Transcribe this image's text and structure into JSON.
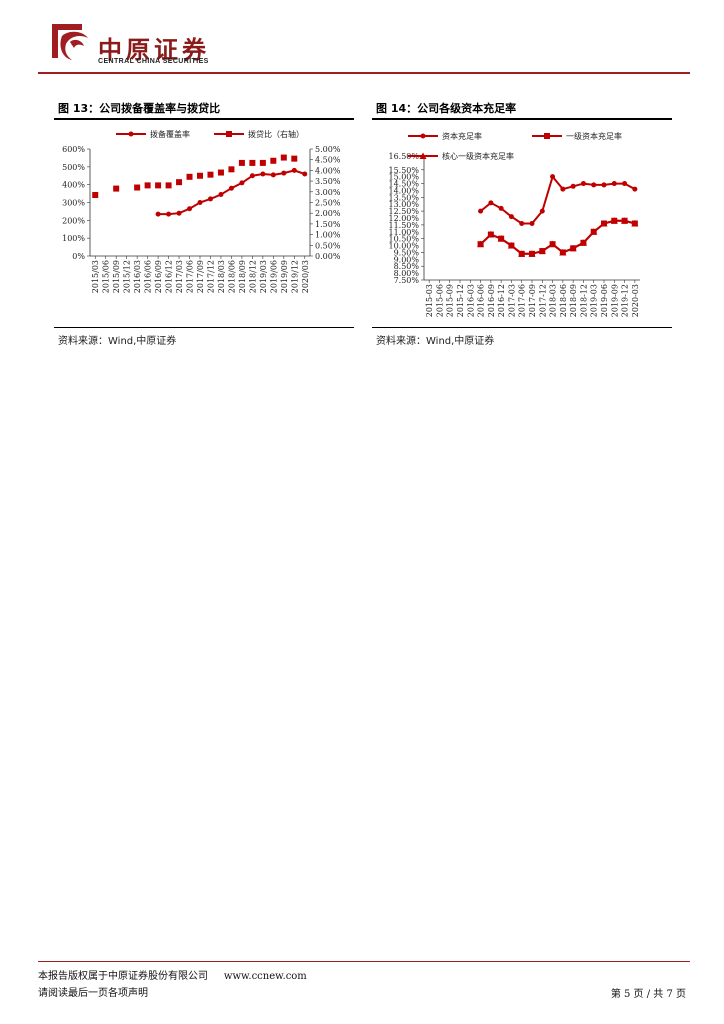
{
  "header": {
    "logo_cn": "中原证券",
    "logo_en": "CENTRAL CHINA SECURITIES",
    "brand_color": "#a01d22"
  },
  "figures": [
    {
      "title": "图 13：公司拨备覆盖率与拨贷比",
      "source": "资料来源：Wind,中原证券",
      "chart_data": {
        "type": "line",
        "x": [
          "2015/03",
          "2015/06",
          "2015/09",
          "2015/12",
          "2016/03",
          "2016/06",
          "2016/09",
          "2016/12",
          "2017/03",
          "2017/06",
          "2017/09",
          "2017/12",
          "2018/03",
          "2018/06",
          "2018/09",
          "2018/12",
          "2019/03",
          "2019/06",
          "2019/09",
          "2019/12",
          "2020/03"
        ],
        "y_left_ticks": [
          "600%",
          "500%",
          "400%",
          "300%",
          "200%",
          "100%",
          "0%"
        ],
        "y_right_ticks": [
          "5.00%",
          "4.50%",
          "4.00%",
          "3.50%",
          "3.00%",
          "2.50%",
          "2.00%",
          "1.50%",
          "1.00%",
          "0.50%",
          "0.00%"
        ],
        "ylim_left": [
          0,
          600
        ],
        "ylim_right": [
          0,
          5
        ],
        "grid": false,
        "legend_position": "top",
        "series": [
          {
            "name": "拨备覆盖率",
            "axis": "left",
            "marker": "circle",
            "color": "#c00000",
            "values": [
              null,
              null,
              null,
              null,
              null,
              null,
              235,
              235,
              240,
              265,
              300,
              320,
              345,
              380,
              410,
              450,
              460,
              455,
              465,
              480,
              460
            ]
          },
          {
            "name": "拨贷比（右轴）",
            "axis": "right",
            "marker": "square",
            "color": "#c00000",
            "values": [
              2.85,
              null,
              3.15,
              null,
              3.2,
              3.3,
              3.3,
              3.3,
              3.45,
              3.7,
              3.75,
              3.8,
              3.9,
              4.05,
              4.35,
              4.35,
              4.35,
              4.45,
              4.6,
              4.55,
              null
            ]
          }
        ]
      }
    },
    {
      "title": "图 14：公司各级资本充足率",
      "source": "资料来源：Wind,中原证券",
      "chart_data": {
        "type": "line",
        "x": [
          "2015-03",
          "2015-06",
          "2015-09",
          "2015-12",
          "2016-03",
          "2016-06",
          "2016-09",
          "2016-12",
          "2017-03",
          "2017-06",
          "2017-09",
          "2017-12",
          "2018-03",
          "2018-06",
          "2018-09",
          "2018-12",
          "2019-03",
          "2019-06",
          "2019-09",
          "2019-12",
          "2020-03"
        ],
        "y_ticks": [
          "16.50%",
          "15.50%",
          "14.50%",
          "13.50%",
          "12.50%",
          "11.50%",
          "10.50%",
          "9.50%",
          "8.50%",
          "7.50%"
        ],
        "y_ticks_alt": [
          "15.00%",
          "14.00%",
          "13.00%",
          "12.00%",
          "11.00%",
          "10.00%",
          "9.00%",
          "8.00%"
        ],
        "ylim": [
          7.5,
          16.5
        ],
        "grid": false,
        "legend_position": "top",
        "series": [
          {
            "name": "资本充足率",
            "marker": "circle",
            "color": "#c00000",
            "values": [
              null,
              null,
              null,
              null,
              null,
              12.5,
              13.1,
              12.7,
              12.1,
              11.6,
              11.6,
              12.5,
              15.0,
              14.1,
              14.3,
              14.5,
              14.4,
              14.4,
              14.5,
              14.5,
              14.1
            ]
          },
          {
            "name": "一级资本充足率",
            "marker": "square",
            "color": "#c00000",
            "values": [
              null,
              null,
              null,
              null,
              null,
              10.1,
              10.8,
              10.5,
              10.0,
              9.4,
              9.4,
              9.6,
              10.1,
              9.5,
              9.8,
              10.2,
              11.0,
              11.6,
              11.8,
              11.8,
              11.6
            ]
          },
          {
            "name": "核心一级资本充足率",
            "marker": "triangle",
            "color": "#c00000",
            "values": [
              null,
              null,
              null,
              null,
              null,
              10.1,
              10.8,
              10.5,
              10.0,
              9.4,
              9.4,
              9.6,
              10.1,
              9.5,
              9.8,
              10.2,
              11.0,
              11.6,
              11.8,
              11.8,
              11.6
            ]
          }
        ]
      }
    }
  ],
  "footer": {
    "copyright": "本报告版权属于中原证券股份有限公司",
    "website": "www.ccnew.com",
    "disclaimer": "请阅读最后一页各项声明",
    "page_label": "第 5 页 / 共 7 页"
  }
}
